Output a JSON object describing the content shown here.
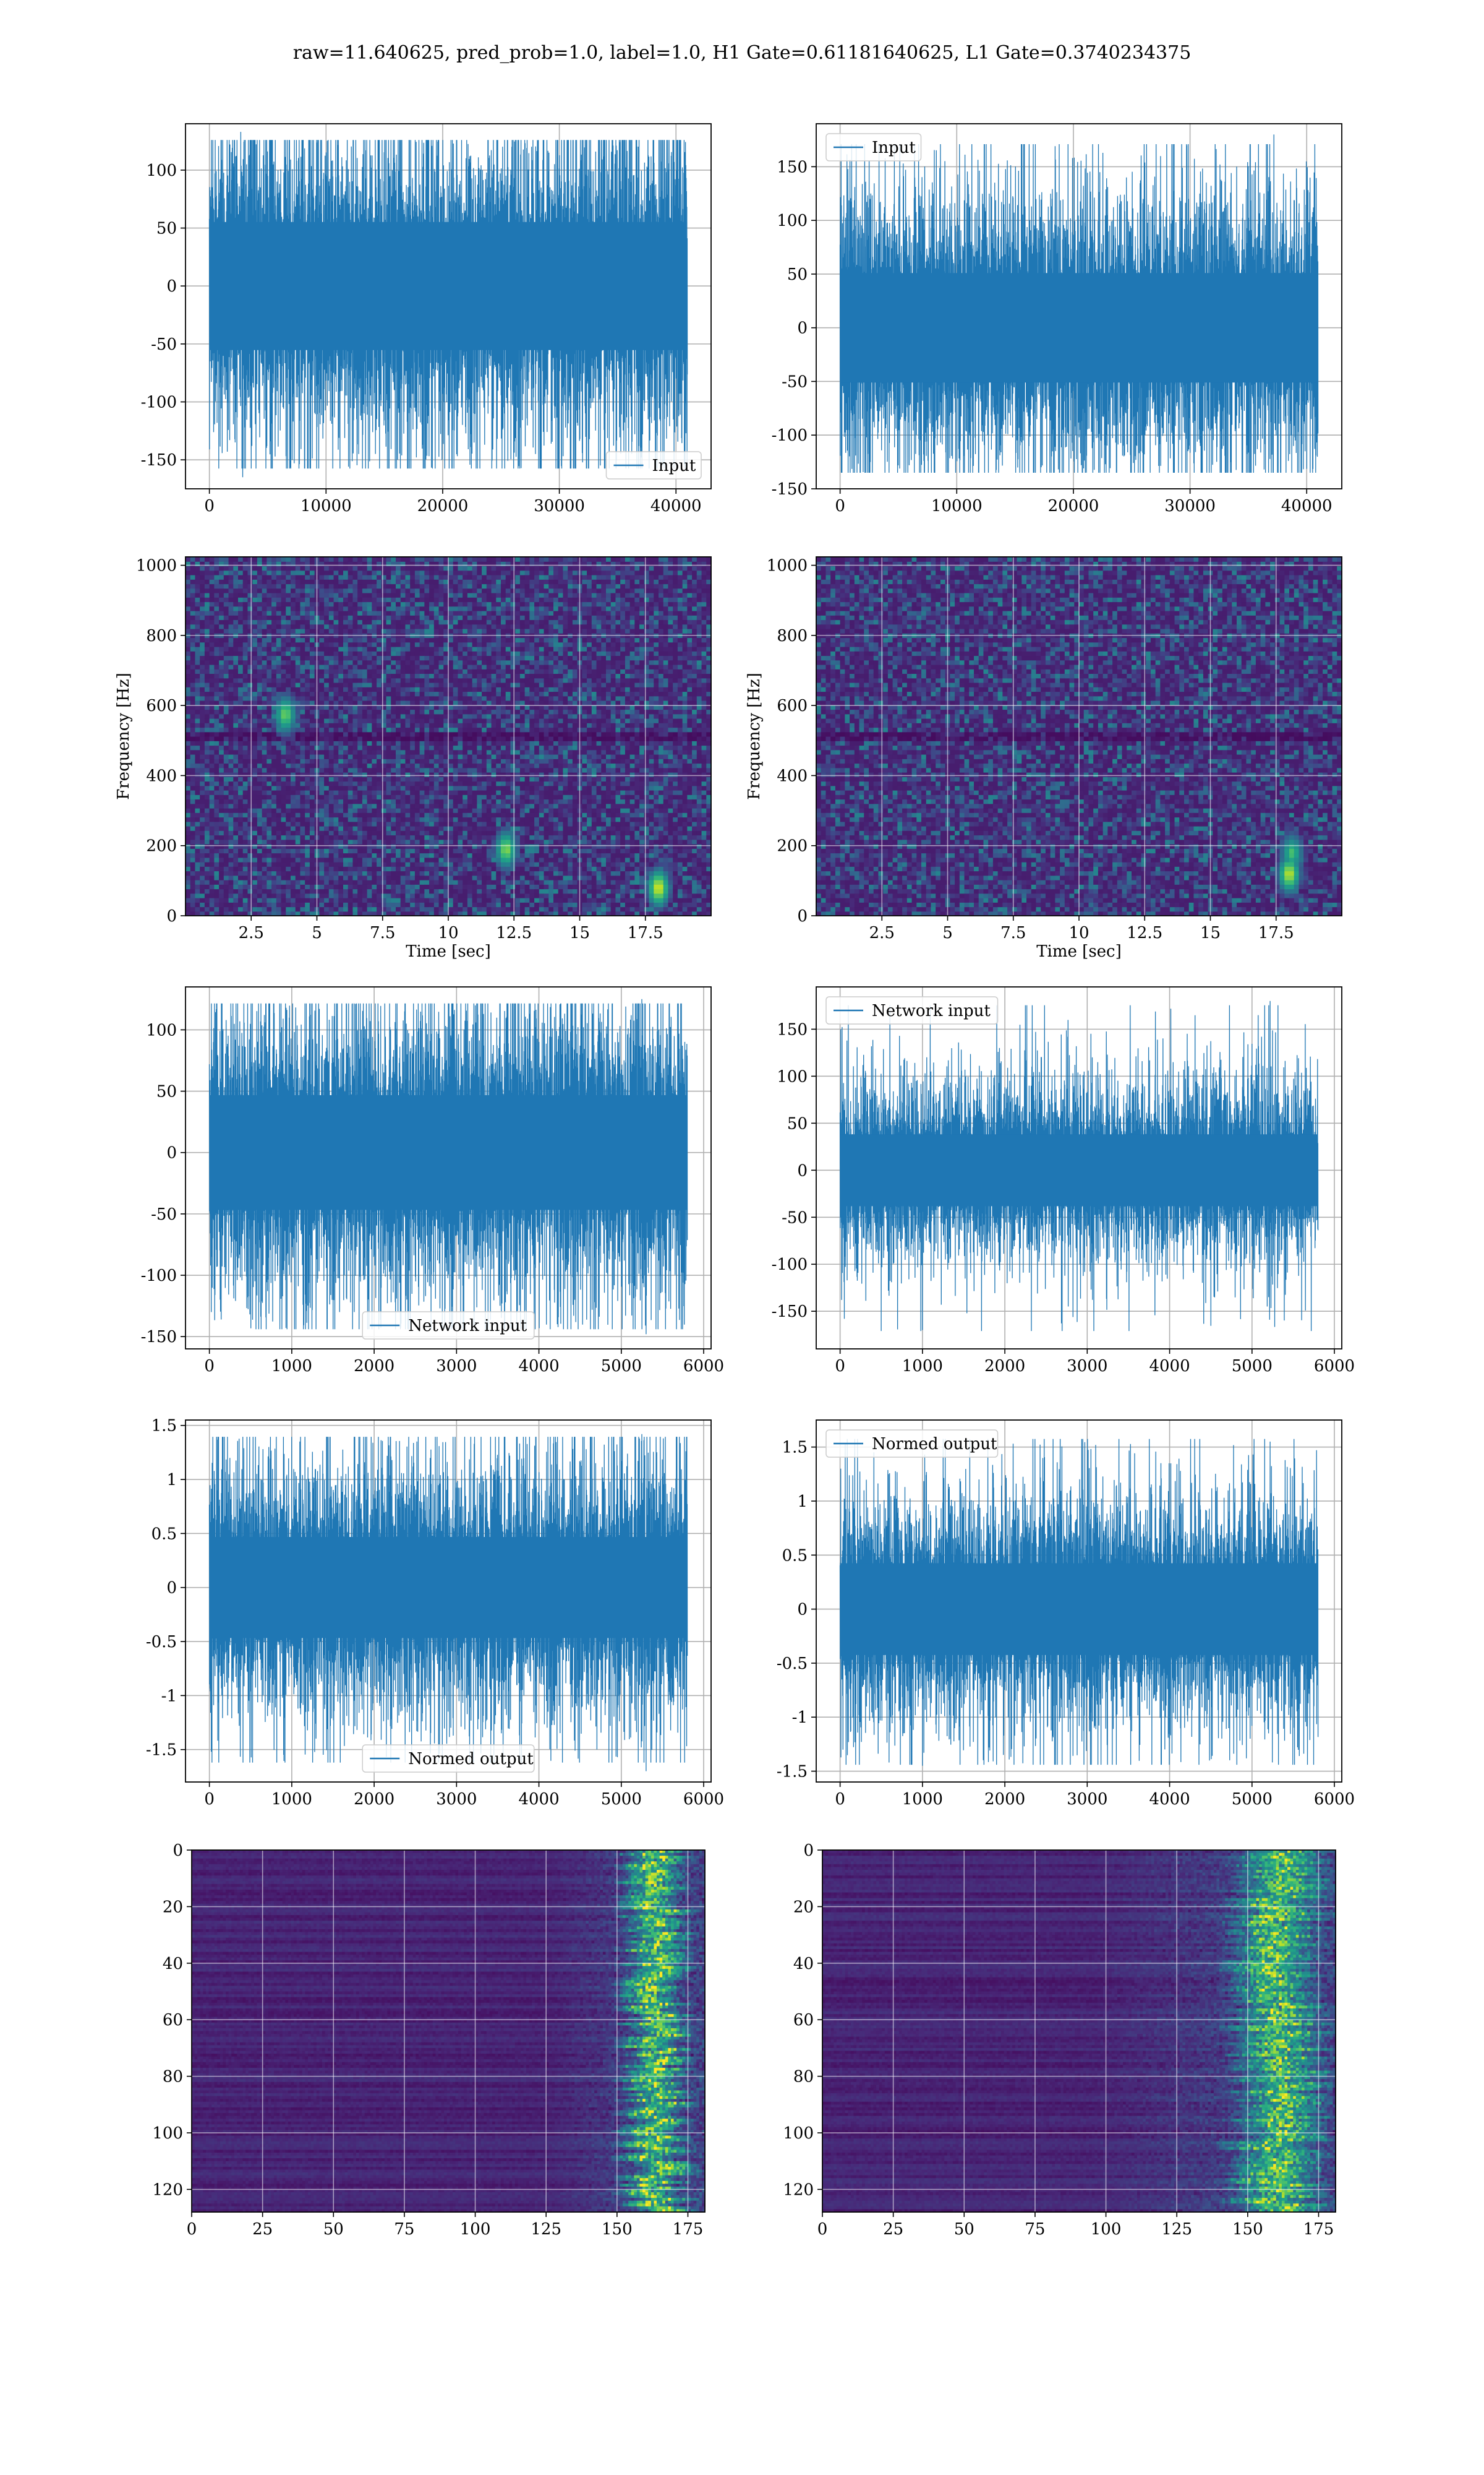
{
  "figure": {
    "title": "raw=11.640625, pred_prob=1.0, label=1.0, H1 Gate=0.61181640625, L1 Gate=0.3740234375"
  },
  "colors": {
    "line": "#1f77b4",
    "grid": "#b0b0b0",
    "viridis_low": "#440154",
    "viridis_mid": "#21918c",
    "viridis_high": "#fde725"
  },
  "chart_data": [
    {
      "id": "h1-input",
      "type": "line",
      "series": [
        {
          "name": "Input",
          "pattern": "noise",
          "length": 40960,
          "amplitude": 65,
          "peaks": [
            {
              "x": 2700,
              "y": 133
            },
            {
              "x": 2850,
              "y": -165
            },
            {
              "x": 37000,
              "y": -148
            }
          ]
        }
      ],
      "xlim": [
        -2048,
        43008
      ],
      "ylim": [
        -175,
        140
      ],
      "xticks": [
        0,
        10000,
        20000,
        30000,
        40000
      ],
      "yticks": [
        -150,
        -100,
        -50,
        0,
        50,
        100
      ],
      "legend": "lower right",
      "grid": true,
      "xlabel": "",
      "ylabel": ""
    },
    {
      "id": "l1-input",
      "type": "line",
      "series": [
        {
          "name": "Input",
          "pattern": "noise",
          "length": 40960,
          "amplitude": 60,
          "peaks": [
            {
              "x": 37200,
              "y": 180
            },
            {
              "x": 8000,
              "y": 125
            },
            {
              "x": 37100,
              "y": -135
            }
          ]
        }
      ],
      "xlim": [
        -2048,
        43008
      ],
      "ylim": [
        -150,
        190
      ],
      "xticks": [
        0,
        10000,
        20000,
        30000,
        40000
      ],
      "yticks": [
        -150,
        -100,
        -50,
        0,
        50,
        100,
        150
      ],
      "legend": "upper left",
      "grid": true,
      "xlabel": "",
      "ylabel": ""
    },
    {
      "id": "h1-spectrogram",
      "type": "heatmap",
      "xlim": [
        0,
        20
      ],
      "ylim": [
        0,
        1024
      ],
      "xticks": [
        2.5,
        5.0,
        7.5,
        10.0,
        12.5,
        15.0,
        17.5
      ],
      "yticks": [
        0,
        200,
        400,
        600,
        800,
        1000
      ],
      "xlabel": "Time [sec]",
      "ylabel": "Frequency [Hz]",
      "grid": true,
      "hotspots": [
        {
          "x": 18.0,
          "y": 80,
          "v": 0.9
        },
        {
          "x": 12.2,
          "y": 190,
          "v": 0.75
        },
        {
          "x": 3.8,
          "y": 575,
          "v": 0.7
        }
      ]
    },
    {
      "id": "l1-spectrogram",
      "type": "heatmap",
      "xlim": [
        0,
        20
      ],
      "ylim": [
        0,
        1024
      ],
      "xticks": [
        2.5,
        5.0,
        7.5,
        10.0,
        12.5,
        15.0,
        17.5
      ],
      "yticks": [
        0,
        200,
        400,
        600,
        800,
        1000
      ],
      "xlabel": "Time [sec]",
      "ylabel": "Frequency [Hz]",
      "grid": true,
      "hotspots": [
        {
          "x": 18.0,
          "y": 120,
          "v": 0.85
        },
        {
          "x": 18.1,
          "y": 180,
          "v": 0.6
        }
      ]
    },
    {
      "id": "h1-network-input",
      "type": "line",
      "series": [
        {
          "name": "Network input",
          "pattern": "noise",
          "length": 5800,
          "amplitude": 55,
          "peaks": [
            {
              "x": 5250,
              "y": 125
            },
            {
              "x": 5300,
              "y": -148
            },
            {
              "x": 20,
              "y": -130
            }
          ]
        }
      ],
      "xlim": [
        -290,
        6090
      ],
      "ylim": [
        -160,
        135
      ],
      "xticks": [
        0,
        1000,
        2000,
        3000,
        4000,
        5000,
        6000
      ],
      "yticks": [
        -150,
        -100,
        -50,
        0,
        50,
        100
      ],
      "legend": "lower center",
      "grid": true,
      "xlabel": "",
      "ylabel": ""
    },
    {
      "id": "l1-network-input",
      "type": "line",
      "series": [
        {
          "name": "Network input",
          "pattern": "noise",
          "length": 5800,
          "amplitude": 45,
          "peaks": [
            {
              "x": 5220,
              "y": 180
            },
            {
              "x": 1000,
              "y": -170
            },
            {
              "x": 5200,
              "y": -135
            },
            {
              "x": 10,
              "y": 150
            }
          ]
        }
      ],
      "xlim": [
        -290,
        6090
      ],
      "ylim": [
        -190,
        195
      ],
      "xticks": [
        0,
        1000,
        2000,
        3000,
        4000,
        5000,
        6000
      ],
      "yticks": [
        -150,
        -100,
        -50,
        0,
        50,
        100,
        150
      ],
      "legend": "upper left",
      "grid": true,
      "xlabel": "",
      "ylabel": ""
    },
    {
      "id": "h1-normed-output",
      "type": "line",
      "series": [
        {
          "name": "Normed output",
          "pattern": "noise",
          "length": 5800,
          "amplitude": 0.55,
          "peaks": [
            {
              "x": 5250,
              "y": 1.42
            },
            {
              "x": 5300,
              "y": -1.7
            },
            {
              "x": 20,
              "y": -1.52
            }
          ]
        }
      ],
      "xlim": [
        -290,
        6090
      ],
      "ylim": [
        -1.8,
        1.55
      ],
      "xticks": [
        0,
        1000,
        2000,
        3000,
        4000,
        5000,
        6000
      ],
      "yticks": [
        -1.5,
        -1.0,
        -0.5,
        0.0,
        0.5,
        1.0,
        1.5
      ],
      "legend": "lower center",
      "grid": true,
      "xlabel": "",
      "ylabel": ""
    },
    {
      "id": "l1-normed-output",
      "type": "line",
      "series": [
        {
          "name": "Normed output",
          "pattern": "noise",
          "length": 5800,
          "amplitude": 0.5,
          "peaks": [
            {
              "x": 5220,
              "y": 1.55
            },
            {
              "x": 1000,
              "y": -1.45
            },
            {
              "x": 5200,
              "y": -1.15
            },
            {
              "x": 10,
              "y": 1.3
            }
          ]
        }
      ],
      "xlim": [
        -290,
        6090
      ],
      "ylim": [
        -1.6,
        1.75
      ],
      "xticks": [
        0,
        1000,
        2000,
        3000,
        4000,
        5000,
        6000
      ],
      "yticks": [
        -1.5,
        -1.0,
        -0.5,
        0.0,
        0.5,
        1.0,
        1.5
      ],
      "legend": "upper left",
      "grid": true,
      "xlabel": "",
      "ylabel": ""
    },
    {
      "id": "h1-feature-map",
      "type": "heatmap",
      "xlim": [
        0,
        181
      ],
      "ylim": [
        128,
        0
      ],
      "xticks": [
        0,
        25,
        50,
        75,
        100,
        125,
        150,
        175
      ],
      "yticks": [
        0,
        20,
        40,
        60,
        80,
        100,
        120
      ],
      "xlabel": "",
      "ylabel": "",
      "grid": true,
      "band": {
        "start": 125,
        "peak": 163,
        "width": 8,
        "strength": 0.85
      }
    },
    {
      "id": "l1-feature-map",
      "type": "heatmap",
      "xlim": [
        0,
        181
      ],
      "ylim": [
        128,
        0
      ],
      "xticks": [
        0,
        25,
        50,
        75,
        100,
        125,
        150,
        175
      ],
      "yticks": [
        0,
        20,
        40,
        60,
        80,
        100,
        120
      ],
      "xlabel": "",
      "ylabel": "",
      "grid": true,
      "band": {
        "start": 95,
        "peak": 160,
        "width": 12,
        "strength": 0.8
      }
    }
  ]
}
